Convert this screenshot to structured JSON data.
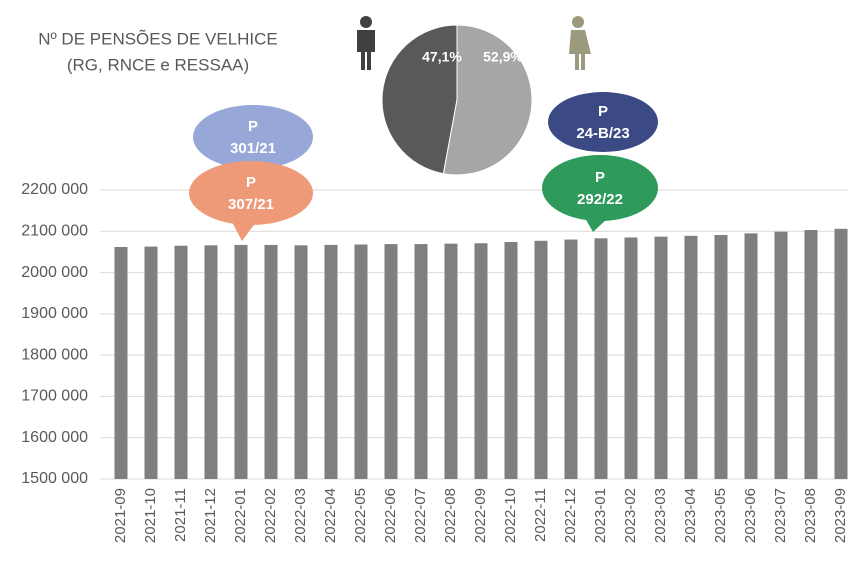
{
  "chart_data": [
    {
      "type": "bar",
      "title": [
        "Nº DE PENSÕES DE VELHICE",
        "(RG, RNCE e RESSAA)"
      ],
      "categories": [
        "2021-09",
        "2021-10",
        "2021-11",
        "2021-12",
        "2022-01",
        "2022-02",
        "2022-03",
        "2022-04",
        "2022-05",
        "2022-06",
        "2022-07",
        "2022-08",
        "2022-09",
        "2022-10",
        "2022-11",
        "2022-12",
        "2023-01",
        "2023-02",
        "2023-03",
        "2023-04",
        "2023-05",
        "2023-06",
        "2023-07",
        "2023-08",
        "2023-09"
      ],
      "values": [
        2062000,
        2063000,
        2065000,
        2066000,
        2067000,
        2067000,
        2066000,
        2067000,
        2068000,
        2069000,
        2069000,
        2070000,
        2071000,
        2074000,
        2077000,
        2080000,
        2083000,
        2085000,
        2087000,
        2089000,
        2091000,
        2095000,
        2099000,
        2103000,
        2106000
      ],
      "color": "#7f7f7f",
      "ylim": [
        1500000,
        2200000
      ],
      "yticks": [
        {
          "value": 1500000,
          "label": "1500 000"
        },
        {
          "value": 1600000,
          "label": "1600 000"
        },
        {
          "value": 1700000,
          "label": "1700 000"
        },
        {
          "value": 1800000,
          "label": "1800 000"
        },
        {
          "value": 1900000,
          "label": "1900 000"
        },
        {
          "value": 2000000,
          "label": "2000 000"
        },
        {
          "value": 2100000,
          "label": "2100 000"
        },
        {
          "value": 2200000,
          "label": "2200 000"
        }
      ],
      "grid": true,
      "annotations": [
        {
          "lines": [
            "P",
            "301/21"
          ],
          "color": "#97a8d8"
        },
        {
          "lines": [
            "P",
            "307/21"
          ],
          "color": "#ee9a78"
        },
        {
          "lines": [
            "P",
            "292/22"
          ],
          "color": "#2e9a5c"
        },
        {
          "lines": [
            "P",
            "24-B/23"
          ],
          "color": "#3b4a84"
        }
      ]
    },
    {
      "type": "pie",
      "values": [
        47.1,
        52.9
      ],
      "value_labels": [
        "47,1%",
        "52,9%"
      ],
      "colors": [
        "#595959",
        "#a6a6a6"
      ]
    }
  ]
}
